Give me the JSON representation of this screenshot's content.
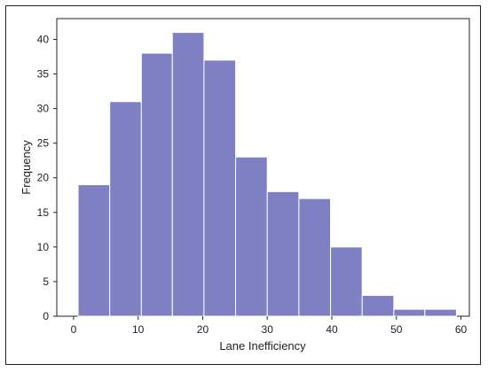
{
  "chart_data": {
    "type": "bar",
    "subtype": "histogram",
    "title": "",
    "xlabel": "Lane Inefficiency",
    "ylabel": "Frequency",
    "bar_color": "#7f7fc4",
    "bar_edge_color": "#ffffff",
    "frame_color": "#222222",
    "xlim": [
      -2.6,
      61.3
    ],
    "ylim": [
      0,
      43
    ],
    "xticks": [
      0,
      10,
      20,
      30,
      40,
      50,
      60
    ],
    "yticks": [
      0,
      5,
      10,
      15,
      20,
      25,
      30,
      35,
      40
    ],
    "grid": false,
    "bins": [
      {
        "x0": 0.7,
        "x1": 5.6,
        "count": 19
      },
      {
        "x0": 5.6,
        "x1": 10.5,
        "count": 31
      },
      {
        "x0": 10.5,
        "x1": 15.3,
        "count": 38
      },
      {
        "x0": 15.3,
        "x1": 20.2,
        "count": 41
      },
      {
        "x0": 20.2,
        "x1": 25.1,
        "count": 37
      },
      {
        "x0": 25.1,
        "x1": 30.0,
        "count": 23
      },
      {
        "x0": 30.0,
        "x1": 34.9,
        "count": 18
      },
      {
        "x0": 34.9,
        "x1": 39.8,
        "count": 17
      },
      {
        "x0": 39.8,
        "x1": 44.7,
        "count": 10
      },
      {
        "x0": 44.7,
        "x1": 49.6,
        "count": 3
      },
      {
        "x0": 49.6,
        "x1": 54.4,
        "count": 1
      },
      {
        "x0": 54.4,
        "x1": 59.3,
        "count": 1
      }
    ]
  }
}
